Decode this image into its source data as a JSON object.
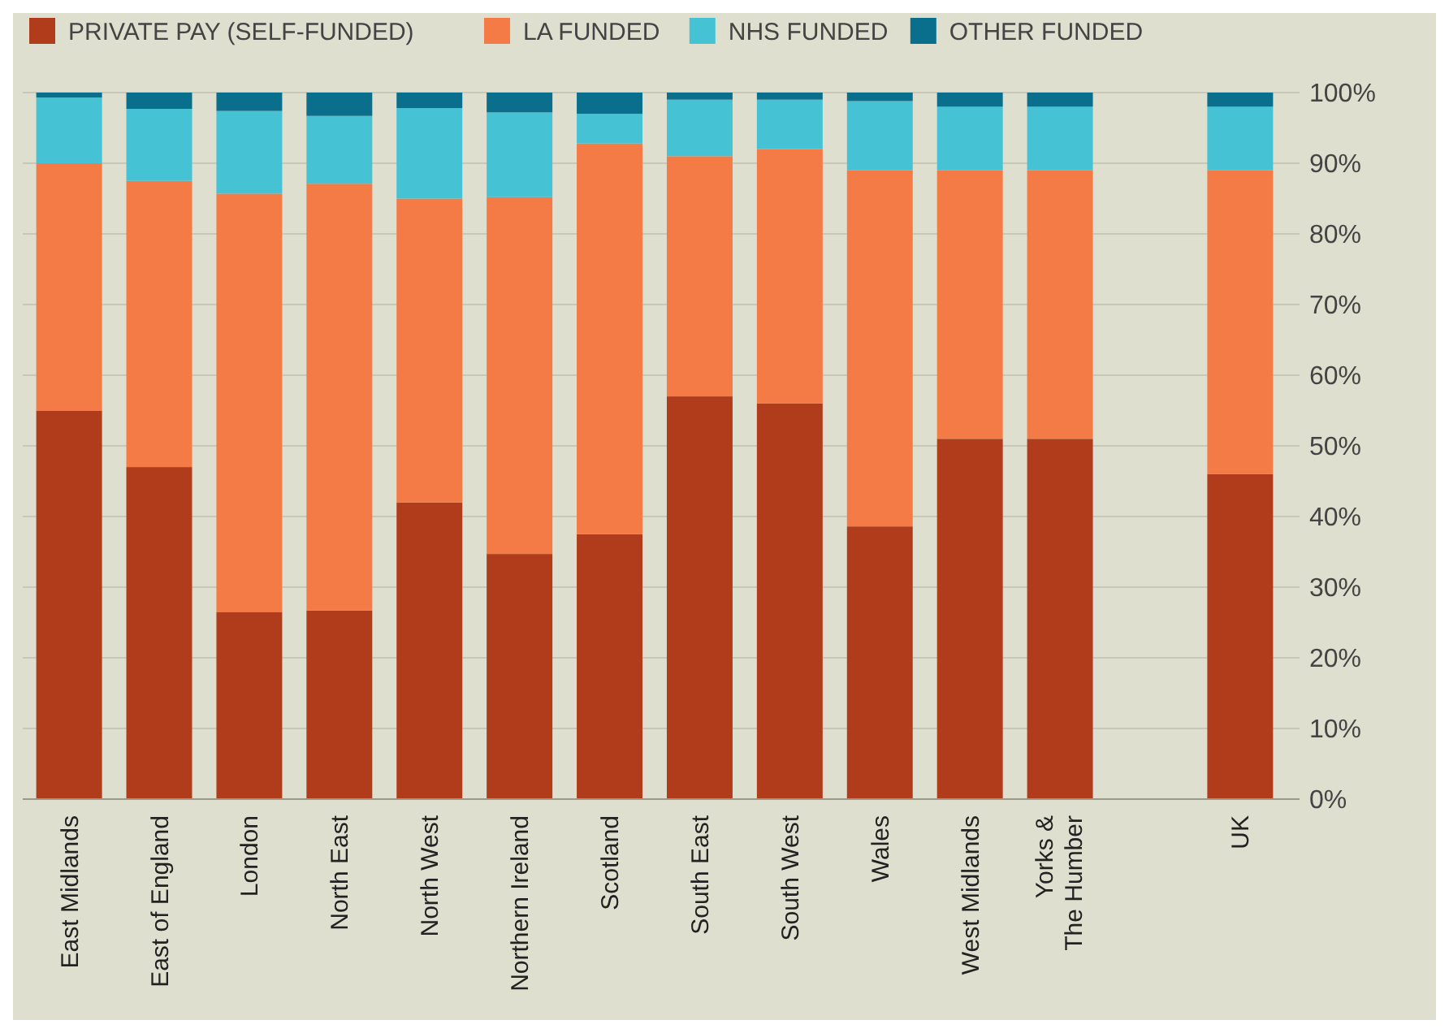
{
  "chart_data": {
    "type": "bar",
    "stacked": true,
    "categories": [
      "East Midlands",
      "East of England",
      "London",
      "North East",
      "North West",
      "Northern Ireland",
      "Scotland",
      "South East",
      "South West",
      "Wales",
      "West Midlands",
      "Yorks & The Humber",
      null,
      "UK"
    ],
    "series": [
      {
        "name": "PRIVATE PAY (SELF-FUNDED)",
        "color": "#b03c1c",
        "values": [
          55,
          47,
          26.5,
          26.7,
          42,
          34.7,
          37.5,
          57,
          56,
          38.6,
          51,
          51,
          null,
          46
        ]
      },
      {
        "name": "LA FUNDED",
        "color": "#f47b45",
        "values": [
          35,
          40.5,
          59.2,
          60.4,
          43,
          50.5,
          55.3,
          34,
          36,
          50.4,
          38,
          38,
          null,
          43
        ]
      },
      {
        "name": "NHS FUNDED",
        "color": "#45c2d4",
        "values": [
          9.3,
          10.2,
          11.7,
          9.6,
          12.8,
          12,
          4.2,
          8,
          7,
          9.8,
          9,
          9,
          null,
          9
        ]
      },
      {
        "name": "OTHER FUNDED",
        "color": "#0a6f8c",
        "values": [
          0.7,
          2.3,
          2.6,
          3.3,
          2.2,
          2.8,
          3,
          1,
          1,
          1.2,
          2,
          2,
          null,
          2
        ]
      }
    ],
    "ylim": [
      0,
      100
    ],
    "yticks": [
      {
        "value": 0,
        "label": "0%"
      },
      {
        "value": 10,
        "label": "10%"
      },
      {
        "value": 20,
        "label": "20%"
      },
      {
        "value": 30,
        "label": "30%"
      },
      {
        "value": 40,
        "label": "40%"
      },
      {
        "value": 50,
        "label": "50%"
      },
      {
        "value": 60,
        "label": "60%"
      },
      {
        "value": 70,
        "label": "70%"
      },
      {
        "value": 80,
        "label": "80%"
      },
      {
        "value": 90,
        "label": "90%"
      },
      {
        "value": 100,
        "label": "100%"
      }
    ],
    "grid": "y",
    "legend": "top left"
  }
}
